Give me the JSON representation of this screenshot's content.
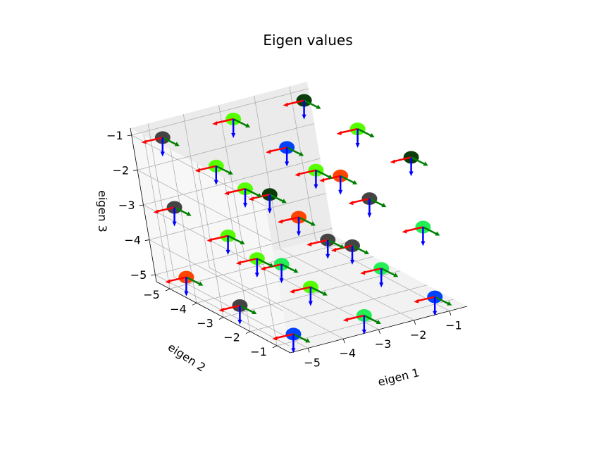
{
  "chart_data": {
    "type": "scatter3d",
    "title": "Eigen values",
    "xlabel": "eigen 1",
    "ylabel": "eigen 2",
    "zlabel": "eigen 3",
    "xlim": [
      -5.5,
      -0.5
    ],
    "ylim": [
      -5.5,
      -0.5
    ],
    "zlim": [
      -5.2,
      -0.8
    ],
    "xticks": [
      -5,
      -4,
      -3,
      -2,
      -1
    ],
    "yticks": [
      -1,
      -2,
      -3,
      -4,
      -5
    ],
    "zticks": [
      -1,
      -2,
      -3,
      -4,
      -5
    ],
    "xtick_labels": [
      "−5",
      "−4",
      "−3",
      "−2",
      "−1"
    ],
    "ytick_labels": [
      "−1",
      "−2",
      "−3",
      "−4",
      "−5"
    ],
    "ztick_labels": [
      "−1",
      "−2",
      "−3",
      "−4",
      "−5"
    ],
    "grid": true,
    "glyph_axis_colors": {
      "eigen1": "#ff0000",
      "eigen2": "#008000",
      "eigen3": "#0000ff"
    },
    "points": [
      {
        "x": -5,
        "y": -1,
        "z": -5,
        "color": "#0044ff"
      },
      {
        "x": -5,
        "y": -1,
        "z": -3,
        "color": "#22ee55"
      },
      {
        "x": -5,
        "y": -1,
        "z": -1,
        "color": "#0b3d0b"
      },
      {
        "x": -5,
        "y": -3,
        "z": -5,
        "color": "#444444"
      },
      {
        "x": -5,
        "y": -3,
        "z": -3,
        "color": "#55ff00"
      },
      {
        "x": -5,
        "y": -3,
        "z": -1,
        "color": "#55ff00"
      },
      {
        "x": -5,
        "y": -5,
        "z": -5,
        "color": "#ff4400"
      },
      {
        "x": -5,
        "y": -5,
        "z": -3,
        "color": "#444444"
      },
      {
        "x": -5,
        "y": -5,
        "z": -1,
        "color": "#444444"
      },
      {
        "x": -3,
        "y": -1,
        "z": -5,
        "color": "#22ee55"
      },
      {
        "x": -3,
        "y": -1,
        "z": -3,
        "color": "#444444"
      },
      {
        "x": -3,
        "y": -1,
        "z": -1,
        "color": "#ff4400"
      },
      {
        "x": -3,
        "y": -3,
        "z": -5,
        "color": "#55ff00"
      },
      {
        "x": -3,
        "y": -3,
        "z": -3,
        "color": "#ff4400"
      },
      {
        "x": -3,
        "y": -3,
        "z": -1,
        "color": "#0044ff"
      },
      {
        "x": -3,
        "y": -5,
        "z": -5,
        "color": "#55ff00"
      },
      {
        "x": -3,
        "y": -5,
        "z": -3,
        "color": "#55ff00"
      },
      {
        "x": -3,
        "y": -5,
        "z": -1,
        "color": "#55ff00"
      },
      {
        "x": -1,
        "y": -1,
        "z": -5,
        "color": "#0044ff"
      },
      {
        "x": -1,
        "y": -1,
        "z": -3,
        "color": "#22ee55"
      },
      {
        "x": -1,
        "y": -1,
        "z": -1,
        "color": "#0b3d0b"
      },
      {
        "x": -1,
        "y": -3,
        "z": -5,
        "color": "#22ee55"
      },
      {
        "x": -1,
        "y": -3,
        "z": -3,
        "color": "#444444"
      },
      {
        "x": -1,
        "y": -3,
        "z": -1,
        "color": "#55ff00"
      },
      {
        "x": -1,
        "y": -5,
        "z": -5,
        "color": "#444444"
      },
      {
        "x": -1,
        "y": -5,
        "z": -3,
        "color": "#55ff00"
      },
      {
        "x": -1,
        "y": -5,
        "z": -1,
        "color": "#0b3d0b"
      }
    ]
  }
}
